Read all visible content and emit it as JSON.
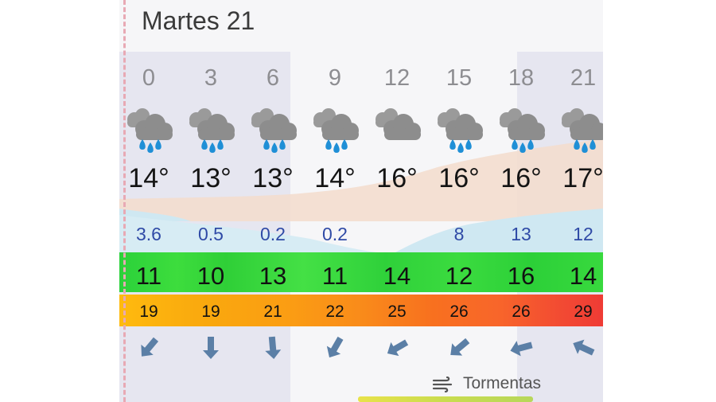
{
  "day_title": "Martes 21",
  "legend_label": "Tormentas",
  "hours": [
    {
      "hour": "0",
      "temp": "14°",
      "precip": "3.6",
      "wind": "11",
      "gust": "19",
      "icon": "rain-cloud-icon",
      "dir_deg": -50
    },
    {
      "hour": "3",
      "temp": "13°",
      "precip": "0.5",
      "wind": "10",
      "gust": "19",
      "icon": "rain-cloud-icon",
      "dir_deg": -90
    },
    {
      "hour": "6",
      "temp": "13°",
      "precip": "0.2",
      "wind": "13",
      "gust": "21",
      "icon": "rain-cloud-icon",
      "dir_deg": -95
    },
    {
      "hour": "9",
      "temp": "14°",
      "precip": "0.2",
      "wind": "11",
      "gust": "22",
      "icon": "rain-cloud-icon",
      "dir_deg": -60
    },
    {
      "hour": "12",
      "temp": "16°",
      "precip": "",
      "wind": "14",
      "gust": "25",
      "icon": "cloud-icon",
      "dir_deg": -30
    },
    {
      "hour": "15",
      "temp": "16°",
      "precip": "8",
      "wind": "12",
      "gust": "26",
      "icon": "rain-cloud-icon",
      "dir_deg": -40
    },
    {
      "hour": "18",
      "temp": "16°",
      "precip": "13",
      "wind": "16",
      "gust": "26",
      "icon": "rain-cloud-icon",
      "dir_deg": -15
    },
    {
      "hour": "21",
      "temp": "17°",
      "precip": "12",
      "wind": "14",
      "gust": "29",
      "icon": "rain-cloud-icon",
      "dir_deg": 25
    }
  ],
  "colors": {
    "night_shade": "#e6e6f0",
    "temp_fill": "#f3dccd",
    "precip_fill": "#cfe8f2",
    "wind_green": "#2fd13a",
    "gust_orange": "#f98b1a",
    "gust_red": "#ef3b35"
  }
}
